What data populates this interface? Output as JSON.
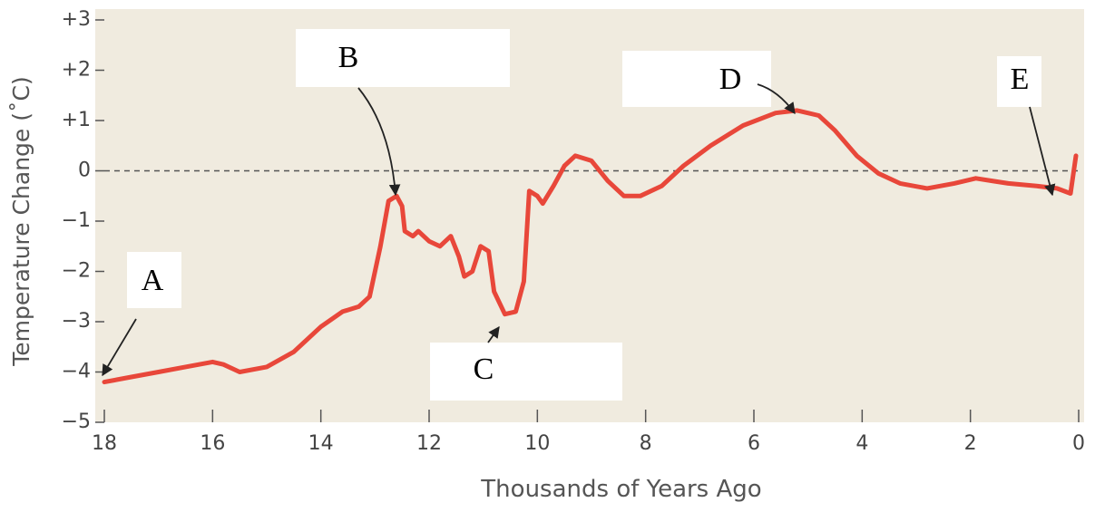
{
  "chart_data": {
    "type": "line",
    "x_label": "Thousands of Years Ago",
    "y_label": "Temperature Change (˚C)",
    "annotations": [
      "A",
      "B",
      "C",
      "D",
      "E"
    ],
    "xlim": [
      18,
      0
    ],
    "xticks": [
      18,
      16,
      14,
      12,
      10,
      8,
      6,
      4,
      2,
      0
    ],
    "ylim": [
      -5,
      3
    ],
    "yticks": [
      {
        "value": -5,
        "label": "−5"
      },
      {
        "value": -4,
        "label": "−4"
      },
      {
        "value": -3,
        "label": "−3"
      },
      {
        "value": -2,
        "label": "−2"
      },
      {
        "value": -1,
        "label": "−1"
      },
      0,
      {
        "value": 1,
        "label": "+1"
      },
      {
        "value": 2,
        "label": "+2"
      },
      {
        "value": 3,
        "label": "+3"
      }
    ],
    "reference_line": 0,
    "series": [
      {
        "color": "#e8473a",
        "x": [
          18,
          17.5,
          17,
          16.5,
          16,
          15.8,
          15.5,
          15,
          14.5,
          14,
          13.6,
          13.3,
          13.1,
          12.9,
          12.75,
          12.6,
          12.5,
          12.45,
          12.3,
          12.2,
          12.0,
          11.8,
          11.6,
          11.45,
          11.35,
          11.2,
          11.05,
          10.9,
          10.8,
          10.6,
          10.4,
          10.25,
          10.15,
          10.0,
          9.9,
          9.7,
          9.5,
          9.3,
          9.0,
          8.7,
          8.4,
          8.1,
          7.7,
          7.3,
          6.8,
          6.2,
          5.6,
          5.2,
          4.8,
          4.5,
          4.1,
          3.7,
          3.3,
          2.8,
          2.3,
          1.9,
          1.6,
          1.3,
          0.8,
          0.4,
          0.15,
          0.05
        ],
        "values": [
          -4.2,
          -4.1,
          -4.0,
          -3.9,
          -3.8,
          -3.85,
          -4.0,
          -3.9,
          -3.6,
          -3.1,
          -2.8,
          -2.7,
          -2.5,
          -1.5,
          -0.6,
          -0.5,
          -0.7,
          -1.2,
          -1.3,
          -1.2,
          -1.4,
          -1.5,
          -1.3,
          -1.7,
          -2.1,
          -2.0,
          -1.5,
          -1.6,
          -2.4,
          -2.85,
          -2.8,
          -2.2,
          -0.4,
          -0.5,
          -0.65,
          -0.3,
          0.1,
          0.3,
          0.2,
          -0.2,
          -0.5,
          -0.5,
          -0.3,
          0.1,
          0.5,
          0.9,
          1.15,
          1.2,
          1.1,
          0.8,
          0.3,
          -0.05,
          -0.25,
          -0.35,
          -0.25,
          -0.15,
          -0.2,
          -0.25,
          -0.3,
          -0.35,
          -0.45,
          0.3
        ]
      }
    ]
  }
}
